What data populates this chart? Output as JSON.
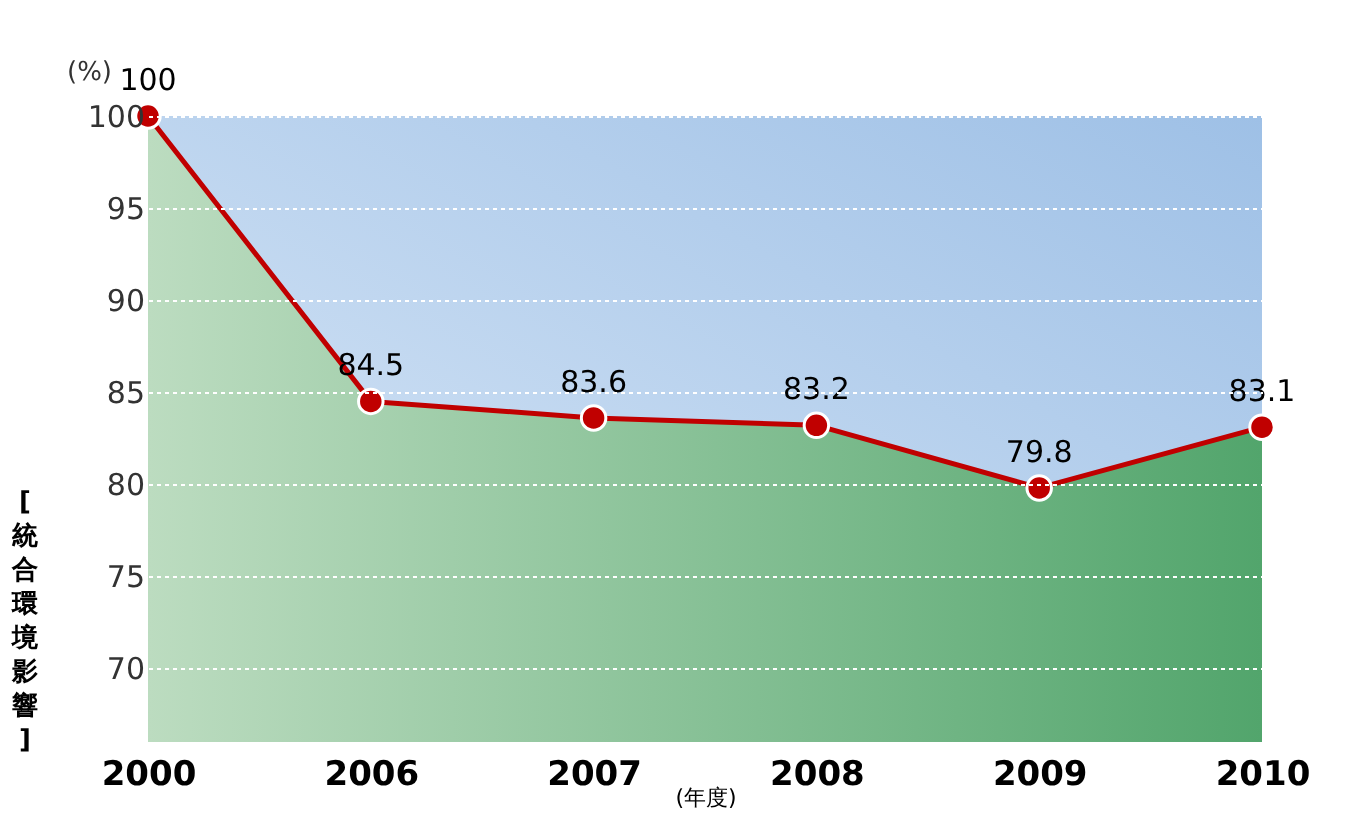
{
  "chart_data": {
    "type": "area",
    "categories": [
      "2000",
      "2006",
      "2007",
      "2008",
      "2009",
      "2010"
    ],
    "series": [
      {
        "color": "#c00000",
        "values": [
          100,
          84.5,
          83.6,
          83.2,
          79.8,
          83.1
        ]
      }
    ],
    "ylabel": "[統合環境影響]",
    "xlabel": "(年度)",
    "annotations": [
      "(%)"
    ],
    "ylim": [
      66,
      100
    ],
    "yticks": [
      70,
      75,
      80,
      85,
      90,
      95,
      100
    ],
    "grid": "y",
    "marker": "circle",
    "data_labels": true
  }
}
